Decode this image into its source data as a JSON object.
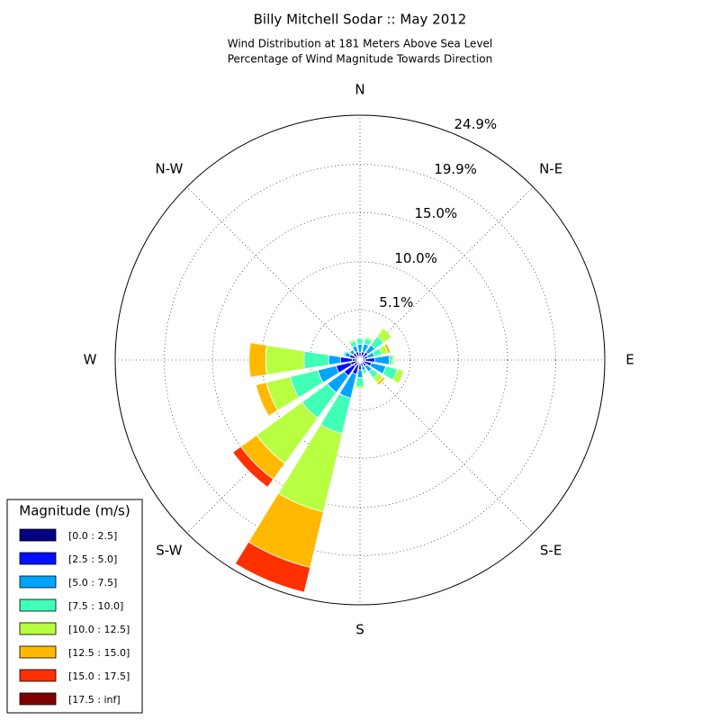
{
  "chart_data": {
    "type": "windrose",
    "title": "Billy Mitchell Sodar :: May 2012",
    "subtitle": [
      "Wind Distribution at 181 Meters Above Sea Level",
      "Percentage of Wind Magnitude Towards Direction"
    ],
    "categories": [
      "N",
      null,
      "N-E",
      null,
      "E",
      null,
      "S-E",
      null,
      "S",
      null,
      "S-W",
      null,
      "W",
      null,
      "N-W",
      null
    ],
    "ylim": [
      0,
      24.9
    ],
    "yticks": [
      {
        "value": 5.1,
        "label": "5.1%"
      },
      {
        "value": 10.0,
        "label": "10.0%"
      },
      {
        "value": 15.0,
        "label": "15.0%"
      },
      {
        "value": 19.9,
        "label": "19.9%"
      },
      {
        "value": 24.9,
        "label": "24.9%"
      }
    ],
    "grid": true,
    "legend_title": "Magnitude (m/s)",
    "legend_position": "lower left",
    "series": [
      {
        "name": "[0.0 : 2.5]",
        "color": "#000080",
        "values": [
          0.3,
          0.4,
          0.4,
          0.3,
          0.5,
          0.4,
          0.3,
          0.3,
          0.4,
          0.5,
          0.8,
          1.0,
          0.8,
          0.5,
          0.4,
          0.4
        ]
      },
      {
        "name": "[2.5 : 5.0]",
        "color": "#0010ff",
        "values": [
          0.5,
          0.5,
          0.6,
          0.5,
          1.0,
          0.8,
          0.5,
          0.4,
          0.6,
          1.0,
          1.2,
          1.5,
          1.2,
          0.6,
          0.5,
          0.5
        ]
      },
      {
        "name": "[5.0 : 7.5]",
        "color": "#00a4ff",
        "values": [
          0.8,
          0.8,
          0.9,
          0.7,
          1.5,
          1.5,
          0.7,
          0.4,
          0.8,
          2.5,
          2.1,
          1.9,
          1.2,
          0.5,
          0.4,
          0.6
        ]
      },
      {
        "name": "[7.5 : 10.0]",
        "color": "#40ffb7",
        "values": [
          0.6,
          0.6,
          1.1,
          0.8,
          0.3,
          1.2,
          0.8,
          0.3,
          0.9,
          3.7,
          3.2,
          2.9,
          2.5,
          0.2,
          0.1,
          0.5
        ]
      },
      {
        "name": "[10.0 : 12.5]",
        "color": "#b7ff40",
        "values": [
          0,
          0.2,
          1.0,
          0.6,
          0.2,
          0.7,
          0.6,
          0.1,
          0.2,
          8.2,
          5.7,
          2.5,
          3.9,
          0,
          0,
          0.2
        ]
      },
      {
        "name": "[12.5 : 15.0]",
        "color": "#ffb900",
        "values": [
          0,
          0,
          0,
          0.3,
          0,
          0,
          0.3,
          0,
          0,
          5.8,
          2.0,
          1.1,
          1.7,
          0,
          0,
          0
        ]
      },
      {
        "name": "[15.0 : 17.5]",
        "color": "#ff3000",
        "values": [
          0,
          0,
          0,
          0,
          0,
          0,
          0,
          0,
          0,
          2.6,
          1.0,
          0,
          0,
          0,
          0,
          0
        ]
      },
      {
        "name": "[17.5 : inf]",
        "color": "#800000",
        "values": [
          0,
          0,
          0,
          0,
          0,
          0,
          0,
          0,
          0,
          0,
          0,
          0,
          0,
          0,
          0,
          0
        ]
      }
    ]
  }
}
